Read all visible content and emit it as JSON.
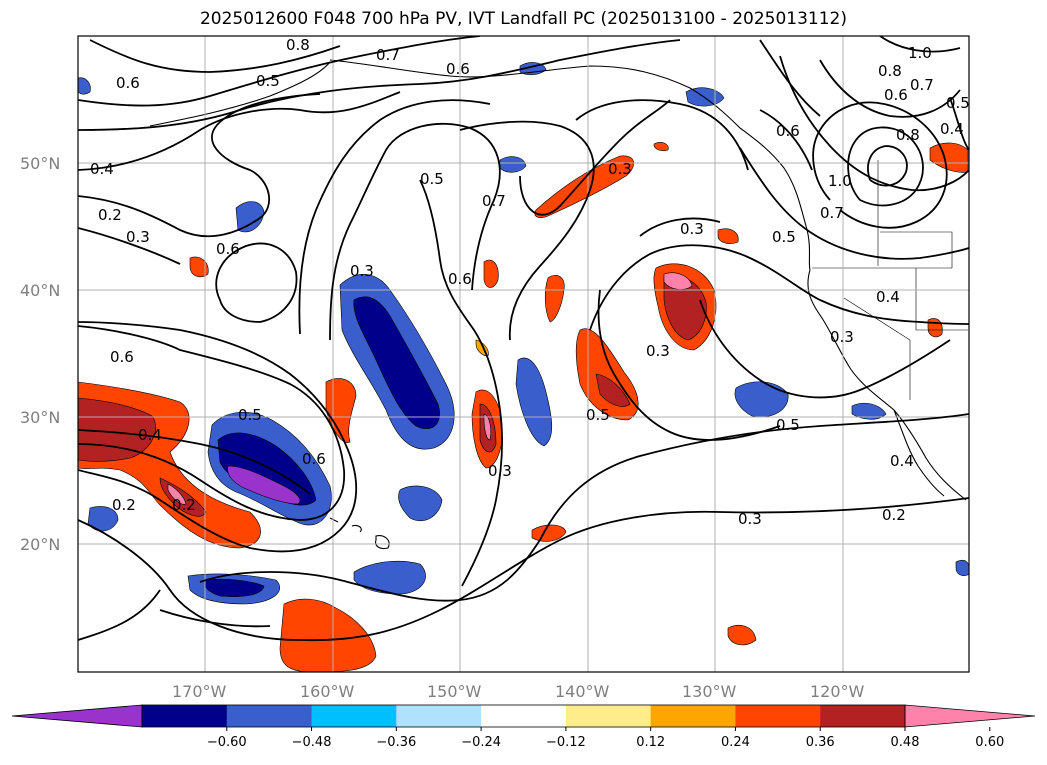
{
  "title": "2025012600 F048 700 hPa PV, IVT Landfall PC (2025013100 - 2025013112)",
  "lat_labels": [
    "50°N",
    "40°N",
    "30°N",
    "20°N"
  ],
  "lon_labels": [
    "170°W",
    "160°W",
    "150°W",
    "140°W",
    "130°W",
    "120°W"
  ],
  "contour_labels": [
    "0.8",
    "0.7",
    "0.6",
    "0.5",
    "0.4",
    "0.3",
    "0.2",
    "1.0",
    "0.6",
    "0.5",
    "0.7",
    "0.6",
    "0.3",
    "0.3",
    "0.3",
    "0.3",
    "0.4",
    "0.5",
    "0.5",
    "0.6",
    "0.6",
    "0.5",
    "0.4",
    "0.2",
    "0.3",
    "0.2",
    "0.6",
    "0.7",
    "1.0",
    "0.8",
    "0.7",
    "0.5",
    "0.6",
    "0.8",
    "0.6",
    "0.4",
    "0.3",
    "0.5",
    "0.3",
    "0.2",
    "0.4"
  ],
  "colorbar": {
    "ticks": [
      "−0.60",
      "−0.48",
      "−0.36",
      "−0.24",
      "−0.12",
      "0.12",
      "0.24",
      "0.36",
      "0.48",
      "0.60"
    ],
    "colors": [
      "#9933cc",
      "#00008b",
      "#3a5fcd",
      "#00bfff",
      "#b0e2ff",
      "#ffffff",
      "#ffec8b",
      "#ffa500",
      "#ff4500",
      "#b22222",
      "#ff82ab"
    ]
  }
}
